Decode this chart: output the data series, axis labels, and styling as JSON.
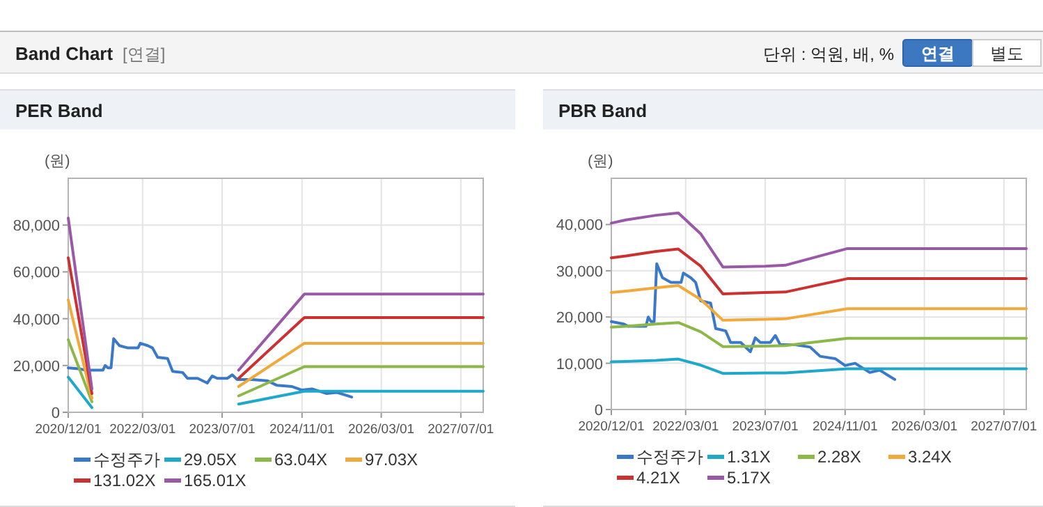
{
  "chart_data": [
    {
      "type": "other",
      "title": "Band Chart",
      "annotations": [
        "[연결]",
        "단위 : 억원, 배, %",
        "연결",
        "별도"
      ]
    },
    {
      "type": "line",
      "title": "PER Band",
      "ylabel": "(원)",
      "grid": true,
      "legend": "bottom",
      "marker": "none",
      "line_style": "solid",
      "xlim": [
        "2020-12-01",
        "2027-11-15"
      ],
      "ylim": [
        0,
        100000
      ],
      "xticks": [
        {
          "value": "2020-12-01",
          "label": "2020/12/01"
        },
        {
          "value": "2022-03-01",
          "label": "2022/03/01"
        },
        {
          "value": "2023-07-01",
          "label": "2023/07/01"
        },
        {
          "value": "2024-11-01",
          "label": "2024/11/01"
        },
        {
          "value": "2026-03-01",
          "label": "2026/03/01"
        },
        {
          "value": "2027-07-01",
          "label": "2027/07/01"
        }
      ],
      "yticks": [
        0,
        {
          "value": 20000,
          "label": "20,000"
        },
        {
          "value": 40000,
          "label": "40,000"
        },
        {
          "value": 60000,
          "label": "60,000"
        },
        {
          "value": 80000,
          "label": "80,000"
        }
      ],
      "series": [
        {
          "name": "수정주가",
          "color": "#3a78c9",
          "x": [
            "2020-12-01",
            "2021-02-15",
            "2021-03-15",
            "2021-07-01",
            "2021-07-15",
            "2021-08-01",
            "2021-08-20",
            "2021-09-05",
            "2021-10-10",
            "2021-12-01",
            "2022-02-01",
            "2022-02-15",
            "2022-04-01",
            "2022-05-01",
            "2022-06-01",
            "2022-08-01",
            "2022-09-01",
            "2022-11-01",
            "2022-12-01",
            "2023-02-01",
            "2023-04-01",
            "2023-05-01",
            "2023-06-01",
            "2023-08-01",
            "2023-09-01",
            "2023-10-01",
            "2024-01-01",
            "2024-04-01",
            "2024-06-01",
            "2024-09-01",
            "2024-11-01",
            "2025-01-01",
            "2025-04-01",
            "2025-06-01",
            "2025-09-01"
          ],
          "values": [
            19000,
            18500,
            18000,
            18000,
            20000,
            19000,
            19000,
            31500,
            28500,
            27500,
            27500,
            29500,
            28500,
            27500,
            23500,
            23000,
            17500,
            17000,
            14500,
            14500,
            12500,
            15500,
            14500,
            14500,
            16000,
            14000,
            14000,
            13500,
            11500,
            11000,
            9500,
            10000,
            8000,
            8500,
            6500
          ]
        },
        {
          "name": "29.05X",
          "color": "#1fa8c9",
          "x": [
            "2020-12-01",
            "2021-04-25",
            null,
            "2023-10-10",
            "2024-11-15",
            "2027-11-15"
          ],
          "values": [
            15000,
            2000,
            null,
            3500,
            9000,
            9000
          ]
        },
        {
          "name": "63.04X",
          "color": "#8cb84a",
          "x": [
            "2020-12-01",
            "2021-04-25",
            null,
            "2023-10-10",
            "2024-11-15",
            "2027-11-15"
          ],
          "values": [
            31000,
            4500,
            null,
            7000,
            19500,
            19500
          ]
        },
        {
          "name": "97.03X",
          "color": "#f2a93b",
          "x": [
            "2020-12-01",
            "2021-04-25",
            null,
            "2023-10-10",
            "2024-11-15",
            "2027-11-15"
          ],
          "values": [
            48000,
            6000,
            null,
            11000,
            29500,
            29500
          ]
        },
        {
          "name": "131.02X",
          "color": "#cc3131",
          "x": [
            "2020-12-01",
            "2021-04-25",
            null,
            "2023-10-10",
            "2024-11-15",
            "2027-11-15"
          ],
          "values": [
            66000,
            8000,
            null,
            14500,
            40500,
            40500
          ]
        },
        {
          "name": "165.01X",
          "color": "#9a59a6",
          "x": [
            "2020-12-01",
            "2021-04-25",
            null,
            "2023-10-10",
            "2024-11-15",
            "2027-11-15"
          ],
          "values": [
            83000,
            10000,
            null,
            18000,
            50500,
            50500
          ]
        }
      ]
    },
    {
      "type": "line",
      "title": "PBR Band",
      "ylabel": "(원)",
      "grid": true,
      "legend": "bottom",
      "marker": "none",
      "line_style": "solid",
      "xlim": [
        "2020-12-01",
        "2027-11-15"
      ],
      "ylim": [
        0,
        50000
      ],
      "xticks": [
        {
          "value": "2020-12-01",
          "label": "2020/12/01"
        },
        {
          "value": "2022-03-01",
          "label": "2022/03/01"
        },
        {
          "value": "2023-07-01",
          "label": "2023/07/01"
        },
        {
          "value": "2024-11-01",
          "label": "2024/11/01"
        },
        {
          "value": "2026-03-01",
          "label": "2026/03/01"
        },
        {
          "value": "2027-07-01",
          "label": "2027/07/01"
        }
      ],
      "yticks": [
        0,
        {
          "value": 10000,
          "label": "10,000"
        },
        {
          "value": 20000,
          "label": "20,000"
        },
        {
          "value": 30000,
          "label": "30,000"
        },
        {
          "value": 40000,
          "label": "40,000"
        }
      ],
      "x": [
        "2020-12-01",
        "2021-03-01",
        "2021-09-01",
        "2022-01-15",
        "2022-06-01",
        "2022-10-15",
        "2023-07-01",
        "2023-11-01",
        "2024-11-15",
        "2027-11-15"
      ],
      "series": [
        {
          "name": "수정주가",
          "color": "#3a78c9",
          "x": [
            "2020-12-01",
            "2021-02-15",
            "2021-03-15",
            "2021-07-01",
            "2021-07-15",
            "2021-08-01",
            "2021-08-20",
            "2021-09-05",
            "2021-10-10",
            "2021-12-01",
            "2022-02-01",
            "2022-02-15",
            "2022-04-01",
            "2022-05-01",
            "2022-06-01",
            "2022-08-01",
            "2022-09-01",
            "2022-11-01",
            "2022-12-01",
            "2023-02-01",
            "2023-04-01",
            "2023-05-01",
            "2023-06-01",
            "2023-08-01",
            "2023-09-01",
            "2023-10-01",
            "2024-01-01",
            "2024-04-01",
            "2024-06-01",
            "2024-09-01",
            "2024-11-01",
            "2025-01-01",
            "2025-04-01",
            "2025-06-01",
            "2025-09-01"
          ],
          "values": [
            19000,
            18500,
            18000,
            18000,
            20000,
            19000,
            19000,
            31500,
            28500,
            27500,
            27500,
            29500,
            28500,
            27500,
            23500,
            23000,
            17500,
            17000,
            14500,
            14500,
            12500,
            15500,
            14500,
            14500,
            16000,
            14000,
            14000,
            13500,
            11500,
            11000,
            9500,
            10000,
            8000,
            8500,
            6500
          ]
        },
        {
          "name": "1.31X",
          "color": "#1fa8c9",
          "values": [
            10300,
            10400,
            10600,
            10900,
            9600,
            7800,
            7900,
            7900,
            8800,
            8800
          ]
        },
        {
          "name": "2.28X",
          "color": "#8cb84a",
          "values": [
            17800,
            18000,
            18500,
            18800,
            16800,
            13600,
            13700,
            13800,
            15400,
            15400
          ]
        },
        {
          "name": "3.24X",
          "color": "#f2a93b",
          "values": [
            25300,
            25600,
            26300,
            26800,
            23800,
            19300,
            19500,
            19600,
            21800,
            21800
          ]
        },
        {
          "name": "4.21X",
          "color": "#cc3131",
          "values": [
            32800,
            33200,
            34200,
            34700,
            31000,
            25000,
            25300,
            25400,
            28300,
            28300
          ]
        },
        {
          "name": "5.17X",
          "color": "#9a59a6",
          "values": [
            40300,
            41000,
            42000,
            42500,
            38000,
            30800,
            31000,
            31200,
            34800,
            34800
          ]
        }
      ]
    }
  ]
}
